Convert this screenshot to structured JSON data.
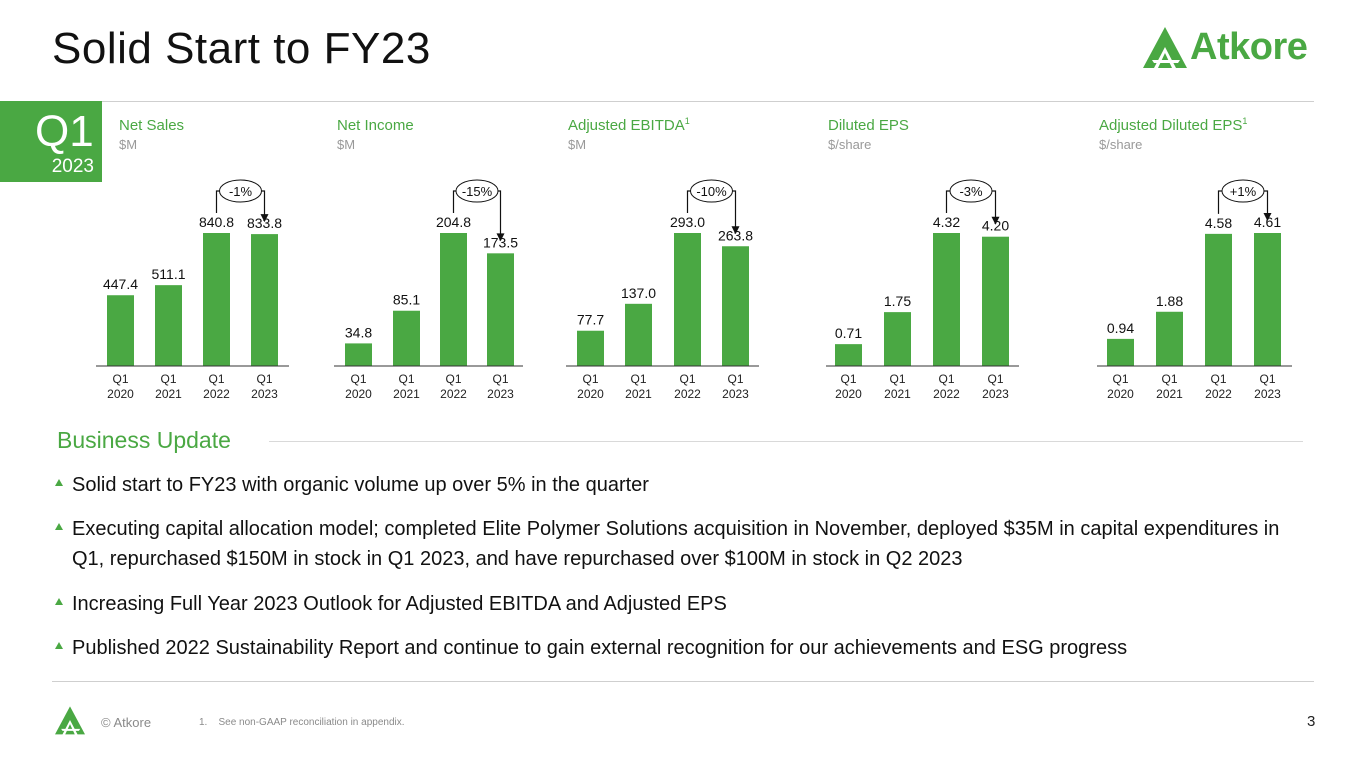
{
  "slide": {
    "title": "Solid Start to FY23",
    "brand": "Atkore",
    "brand_color": "#4aa843"
  },
  "period_badge": {
    "quarter": "Q1",
    "year": "2023"
  },
  "chart_data": [
    {
      "type": "bar",
      "title": "Net Sales",
      "unit": "$M",
      "footnote": "",
      "categories": [
        "Q1\n2020",
        "Q1\n2021",
        "Q1\n2022",
        "Q1\n2023"
      ],
      "values": [
        447.4,
        511.1,
        840.8,
        833.8
      ],
      "labels": [
        "447.4",
        "511.1",
        "840.8",
        "833.8"
      ],
      "change": "-1%"
    },
    {
      "type": "bar",
      "title": "Net Income",
      "unit": "$M",
      "footnote": "",
      "categories": [
        "Q1\n2020",
        "Q1\n2021",
        "Q1\n2022",
        "Q1\n2023"
      ],
      "values": [
        34.8,
        85.1,
        204.8,
        173.5
      ],
      "labels": [
        "34.8",
        "85.1",
        "204.8",
        "173.5"
      ],
      "change": "-15%"
    },
    {
      "type": "bar",
      "title": "Adjusted EBITDA",
      "unit": "$M",
      "footnote": "1",
      "categories": [
        "Q1\n2020",
        "Q1\n2021",
        "Q1\n2022",
        "Q1\n2023"
      ],
      "values": [
        77.7,
        137.0,
        293.0,
        263.8
      ],
      "labels": [
        "77.7",
        "137.0",
        "293.0",
        "263.8"
      ],
      "change": "-10%"
    },
    {
      "type": "bar",
      "title": "Diluted EPS",
      "unit": "$/share",
      "footnote": "",
      "categories": [
        "Q1\n2020",
        "Q1\n2021",
        "Q1\n2022",
        "Q1\n2023"
      ],
      "values": [
        0.71,
        1.75,
        4.32,
        4.2
      ],
      "labels": [
        "0.71",
        "1.75",
        "4.32",
        "4.20"
      ],
      "change": "-3%"
    },
    {
      "type": "bar",
      "title": "Adjusted Diluted EPS",
      "unit": "$/share",
      "footnote": "1",
      "categories": [
        "Q1\n2020",
        "Q1\n2021",
        "Q1\n2022",
        "Q1\n2023"
      ],
      "values": [
        0.94,
        1.88,
        4.58,
        4.61
      ],
      "labels": [
        "0.94",
        "1.88",
        "4.58",
        "4.61"
      ],
      "change": "+1%"
    }
  ],
  "business_update": {
    "title": "Business Update",
    "bullets": [
      "Solid start to FY23 with organic volume up over 5% in the quarter",
      "Executing capital allocation model; completed Elite Polymer Solutions acquisition in November, deployed $35M in capital expenditures in Q1, repurchased $150M in stock in Q1 2023, and have repurchased over $100M in stock in Q2 2023",
      "Increasing Full Year 2023 Outlook for Adjusted EBITDA and Adjusted EPS",
      "Published 2022 Sustainability Report and continue to gain external recognition for our achievements and ESG progress"
    ]
  },
  "footer": {
    "copyright": "© Atkore",
    "footnote_num": "1.",
    "footnote_text": "See non-GAAP reconciliation in appendix.",
    "page_number": "3"
  }
}
